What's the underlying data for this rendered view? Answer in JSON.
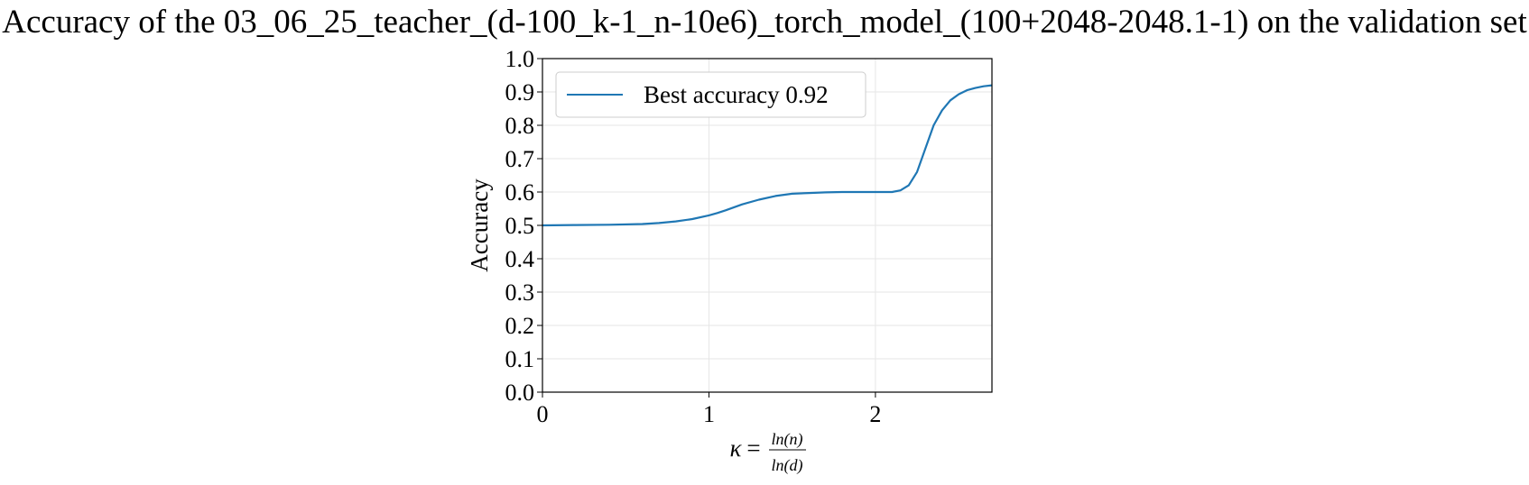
{
  "chart_data": {
    "type": "line",
    "title": "Accuracy of the 03_06_25_teacher_(d-100_k-1_n-10e6)_torch_model_(100+2048-2048.1-1) on the validation set",
    "xlabel": {
      "symbol": "κ",
      "equals": "=",
      "numerator": "ln(n)",
      "denominator": "ln(d)"
    },
    "ylabel": "Accuracy",
    "xlim": [
      0,
      2.7
    ],
    "ylim": [
      0,
      1.0
    ],
    "xticks": [
      0,
      1,
      2
    ],
    "xtick_labels": [
      "0",
      "1",
      "2"
    ],
    "yticks": [
      0.0,
      0.1,
      0.2,
      0.3,
      0.4,
      0.5,
      0.6,
      0.7,
      0.8,
      0.9,
      1.0
    ],
    "ytick_labels": [
      "0.0",
      "0.1",
      "0.2",
      "0.3",
      "0.4",
      "0.5",
      "0.6",
      "0.7",
      "0.8",
      "0.9",
      "1.0"
    ],
    "grid": true,
    "legend_position": "top-left",
    "series": [
      {
        "name": "Best accuracy 0.92",
        "color": "#1f77b4",
        "x": [
          0,
          0.2,
          0.4,
          0.6,
          0.7,
          0.8,
          0.9,
          1.0,
          1.05,
          1.1,
          1.2,
          1.3,
          1.4,
          1.5,
          1.6,
          1.7,
          1.8,
          1.9,
          2.0,
          2.1,
          2.15,
          2.2,
          2.25,
          2.3,
          2.35,
          2.4,
          2.45,
          2.5,
          2.55,
          2.6,
          2.65,
          2.7
        ],
        "y": [
          0.5,
          0.501,
          0.502,
          0.504,
          0.507,
          0.512,
          0.519,
          0.53,
          0.537,
          0.545,
          0.563,
          0.577,
          0.588,
          0.595,
          0.597,
          0.599,
          0.6,
          0.6,
          0.6,
          0.6,
          0.605,
          0.62,
          0.66,
          0.73,
          0.8,
          0.845,
          0.875,
          0.893,
          0.905,
          0.912,
          0.917,
          0.92
        ]
      }
    ]
  }
}
